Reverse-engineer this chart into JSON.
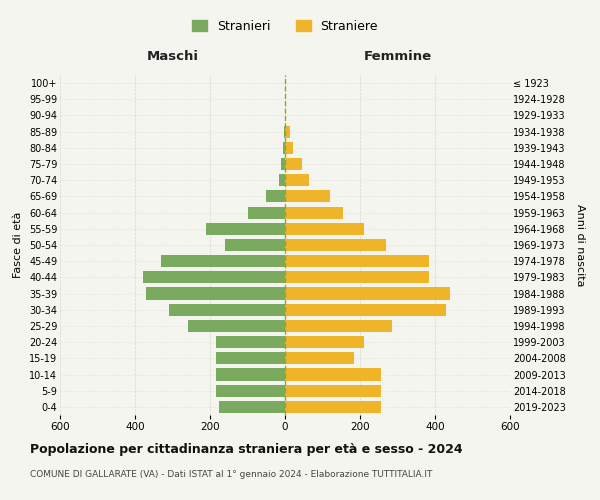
{
  "age_groups": [
    "0-4",
    "5-9",
    "10-14",
    "15-19",
    "20-24",
    "25-29",
    "30-34",
    "35-39",
    "40-44",
    "45-49",
    "50-54",
    "55-59",
    "60-64",
    "65-69",
    "70-74",
    "75-79",
    "80-84",
    "85-89",
    "90-94",
    "95-99",
    "100+"
  ],
  "birth_years": [
    "2019-2023",
    "2014-2018",
    "2009-2013",
    "2004-2008",
    "1999-2003",
    "1994-1998",
    "1989-1993",
    "1984-1988",
    "1979-1983",
    "1974-1978",
    "1969-1973",
    "1964-1968",
    "1959-1963",
    "1954-1958",
    "1949-1953",
    "1944-1948",
    "1939-1943",
    "1934-1938",
    "1929-1933",
    "1924-1928",
    "≤ 1923"
  ],
  "males": [
    175,
    185,
    185,
    185,
    185,
    260,
    310,
    370,
    380,
    330,
    160,
    210,
    100,
    50,
    15,
    12,
    5,
    3,
    0,
    0,
    0
  ],
  "females": [
    255,
    255,
    255,
    185,
    210,
    285,
    430,
    440,
    385,
    385,
    270,
    210,
    155,
    120,
    65,
    45,
    20,
    12,
    0,
    0,
    0
  ],
  "male_color": "#7aaa5e",
  "female_color": "#f0b429",
  "background_color": "#f5f5f0",
  "grid_color": "#cccccc",
  "dashed_line_color": "#a0a020",
  "title": "Popolazione per cittadinanza straniera per età e sesso - 2024",
  "subtitle": "COMUNE DI GALLARATE (VA) - Dati ISTAT al 1° gennaio 2024 - Elaborazione TUTTITALIA.IT",
  "xlabel_left": "Maschi",
  "xlabel_right": "Femmine",
  "ylabel_left": "Fasce di età",
  "ylabel_right": "Anni di nascita",
  "legend_male": "Stranieri",
  "legend_female": "Straniere",
  "xlim": 600,
  "bar_height": 0.75
}
